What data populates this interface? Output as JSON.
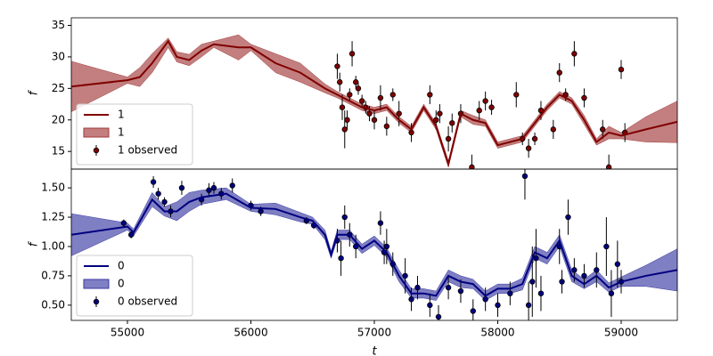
{
  "chart_data": [
    {
      "type": "line",
      "ylabel": "f",
      "legend": "lower left",
      "xlim": [
        54545,
        59455
      ],
      "ylim": [
        12.2,
        36.2
      ],
      "yticks": [
        15,
        20,
        25,
        30,
        35
      ],
      "x": [
        54545,
        55000,
        55100,
        55200,
        55330,
        55400,
        55500,
        55600,
        55700,
        55900,
        56000,
        56200,
        56400,
        56600,
        56700,
        56800,
        56900,
        57000,
        57100,
        57200,
        57300,
        57400,
        57500,
        57600,
        57700,
        57800,
        57900,
        58000,
        58200,
        58400,
        58500,
        58600,
        58700,
        58800,
        58900,
        59000,
        59200,
        59455
      ],
      "series": [
        {
          "name": "1",
          "color": "#800000",
          "values": [
            25.3,
            26.3,
            26.8,
            29,
            32.5,
            30,
            29.5,
            31,
            32,
            31.5,
            31.5,
            29,
            27.5,
            25,
            24,
            23,
            22,
            21.5,
            22,
            20,
            18.5,
            22,
            19,
            13,
            21,
            20,
            19.5,
            16,
            17,
            22,
            24,
            23,
            20,
            16.5,
            18,
            17.5,
            18.5,
            19.7
          ]
        }
      ],
      "band": {
        "name": "1",
        "color": "#a33a3a",
        "lower": [
          21.3,
          25.8,
          25.3,
          27.5,
          31.5,
          29.2,
          28.6,
          30,
          31.5,
          29.5,
          31,
          27.5,
          26,
          24.3,
          23.5,
          22.5,
          21.5,
          21,
          21.5,
          19.5,
          18,
          21.5,
          18.5,
          12.5,
          20.5,
          19.3,
          19,
          15.5,
          16.5,
          21.5,
          23.5,
          22.5,
          19.3,
          16,
          17,
          17,
          16.5,
          16.4
        ],
        "upper": [
          29.3,
          26.8,
          28.3,
          30.5,
          33,
          30.8,
          30.4,
          32,
          32.5,
          33.5,
          32,
          30.5,
          29,
          25.7,
          24.5,
          23.5,
          22.5,
          22,
          22.5,
          20.5,
          19,
          22.5,
          19.5,
          13.5,
          21.5,
          20.7,
          20,
          16.5,
          17.5,
          22.5,
          24.5,
          23.5,
          20.7,
          17,
          19,
          18,
          20.5,
          23
        ]
      },
      "observed": {
        "name": "1 observed",
        "color": "#800000",
        "x": [
          56700,
          56720,
          56740,
          56760,
          56780,
          56800,
          56820,
          56850,
          56870,
          56900,
          56930,
          56960,
          57000,
          57050,
          57100,
          57150,
          57200,
          57300,
          57450,
          57500,
          57530,
          57600,
          57630,
          57700,
          57790,
          57850,
          57900,
          57950,
          58150,
          58200,
          58250,
          58300,
          58350,
          58450,
          58500,
          58550,
          58620,
          58700,
          58850,
          58900,
          59000,
          59030
        ],
        "values": [
          28.5,
          26,
          22,
          18.5,
          20,
          24,
          30.5,
          26,
          25,
          23,
          22,
          21,
          20,
          23.5,
          19,
          24,
          21,
          18,
          24,
          20,
          21,
          17,
          19.5,
          21,
          12.5,
          21.5,
          23,
          22,
          24,
          17,
          15.5,
          17,
          21.5,
          18.5,
          27.5,
          24,
          30.5,
          23.5,
          18.5,
          12.5,
          28,
          18
        ],
        "errors": [
          2,
          1.5,
          2,
          3,
          1.5,
          1,
          2,
          1,
          1,
          1,
          1,
          1.2,
          1.5,
          2,
          1.5,
          1,
          2,
          1.5,
          1.5,
          1.5,
          1.5,
          2,
          1.5,
          1.5,
          2,
          1.5,
          1.5,
          1.2,
          2,
          1,
          1.5,
          1,
          1.5,
          1.5,
          1.5,
          1,
          2,
          1.5,
          1.5,
          2,
          1.5,
          1.5
        ]
      }
    },
    {
      "type": "line",
      "ylabel": "f",
      "xlabel": "t",
      "legend": "lower left",
      "xlim": [
        54545,
        59455
      ],
      "ylim": [
        0.37,
        1.66
      ],
      "yticks": [
        {
          "value": 0.5,
          "label": "0.50"
        },
        0.75,
        {
          "value": 1.0,
          "label": "1.00"
        },
        1.25,
        {
          "value": 1.5,
          "label": "1.50"
        }
      ],
      "xticks": [
        55000,
        56000,
        57000,
        58000,
        59000
      ],
      "x": [
        54545,
        55000,
        55050,
        55200,
        55300,
        55400,
        55500,
        55600,
        55800,
        56000,
        56200,
        56400,
        56500,
        56600,
        56650,
        56700,
        56800,
        56900,
        57000,
        57100,
        57200,
        57300,
        57400,
        57500,
        57600,
        57700,
        57800,
        57900,
        58000,
        58100,
        58200,
        58300,
        58400,
        58500,
        58600,
        58700,
        58800,
        58900,
        59000,
        59200,
        59455
      ],
      "series": [
        {
          "name": "0",
          "color": "#000080",
          "values": [
            1.1,
            1.17,
            1.12,
            1.4,
            1.3,
            1.3,
            1.38,
            1.42,
            1.45,
            1.33,
            1.32,
            1.25,
            1.22,
            1.1,
            0.93,
            1.1,
            1.1,
            0.98,
            1.05,
            0.95,
            0.75,
            0.6,
            0.6,
            0.58,
            0.75,
            0.7,
            0.68,
            0.58,
            0.64,
            0.64,
            0.68,
            0.95,
            0.9,
            1.05,
            0.75,
            0.68,
            0.75,
            0.65,
            0.7,
            0.75,
            0.8
          ]
        }
      ],
      "band": {
        "name": "0",
        "color": "#3a3aa3",
        "lower": [
          0.92,
          1.14,
          1.09,
          1.34,
          1.26,
          1.22,
          1.3,
          1.36,
          1.4,
          1.3,
          1.27,
          1.21,
          1.19,
          1.06,
          0.9,
          1.06,
          1.06,
          0.94,
          1.01,
          0.91,
          0.7,
          0.56,
          0.56,
          0.54,
          0.7,
          0.65,
          0.64,
          0.54,
          0.6,
          0.6,
          0.63,
          0.9,
          0.85,
          1.0,
          0.7,
          0.64,
          0.7,
          0.61,
          0.66,
          0.66,
          0.62
        ],
        "upper": [
          1.28,
          1.2,
          1.15,
          1.46,
          1.34,
          1.38,
          1.46,
          1.48,
          1.5,
          1.36,
          1.37,
          1.29,
          1.25,
          1.14,
          0.96,
          1.14,
          1.14,
          1.02,
          1.09,
          0.99,
          0.8,
          0.64,
          0.64,
          0.62,
          0.8,
          0.75,
          0.72,
          0.62,
          0.68,
          0.68,
          0.73,
          1.0,
          0.95,
          1.1,
          0.8,
          0.72,
          0.8,
          0.69,
          0.74,
          0.84,
          0.98
        ]
      },
      "observed": {
        "name": "0 observed",
        "color": "#000080",
        "x": [
          54970,
          55030,
          55210,
          55250,
          55300,
          55350,
          55440,
          55600,
          55660,
          55700,
          55760,
          55850,
          56000,
          56080,
          56450,
          56510,
          56700,
          56730,
          56760,
          56800,
          56850,
          57050,
          57080,
          57100,
          57150,
          57250,
          57300,
          57350,
          57450,
          57520,
          57600,
          57700,
          57800,
          57900,
          58000,
          58100,
          58220,
          58250,
          58280,
          58310,
          58350,
          58500,
          58520,
          58570,
          58620,
          58700,
          58800,
          58880,
          58920,
          58970,
          59000
        ],
        "values": [
          1.2,
          1.1,
          1.55,
          1.45,
          1.38,
          1.3,
          1.5,
          1.4,
          1.48,
          1.5,
          1.45,
          1.52,
          1.35,
          1.3,
          1.22,
          1.18,
          1.05,
          0.9,
          1.25,
          1.1,
          1.0,
          1.2,
          0.95,
          1.0,
          0.85,
          0.75,
          0.55,
          0.65,
          0.5,
          0.4,
          0.65,
          0.62,
          0.45,
          0.55,
          0.5,
          0.6,
          1.6,
          0.5,
          0.7,
          0.9,
          0.6,
          1.0,
          0.7,
          1.25,
          0.8,
          0.75,
          0.8,
          1.0,
          0.6,
          0.85,
          0.7
        ],
        "errors": [
          0.03,
          0.03,
          0.05,
          0.05,
          0.04,
          0.05,
          0.06,
          0.05,
          0.06,
          0.05,
          0.05,
          0.06,
          0.04,
          0.04,
          0.03,
          0.03,
          0.1,
          0.15,
          0.1,
          0.1,
          0.1,
          0.1,
          0.1,
          0.15,
          0.1,
          0.15,
          0.1,
          0.1,
          0.1,
          0.1,
          0.1,
          0.1,
          0.1,
          0.1,
          0.1,
          0.1,
          0.2,
          0.2,
          0.3,
          0.25,
          0.15,
          0.15,
          0.1,
          0.15,
          0.1,
          0.1,
          0.15,
          0.25,
          0.2,
          0.2,
          0.1
        ]
      }
    }
  ]
}
